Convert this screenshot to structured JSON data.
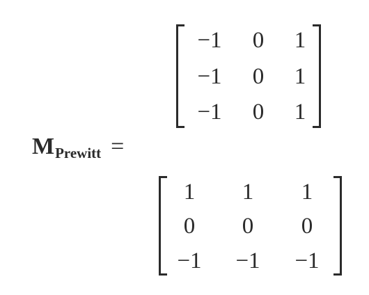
{
  "label": {
    "symbol": "M",
    "subscript": "Prewitt",
    "equals": "="
  },
  "matrix_a": {
    "rows": [
      [
        "−1",
        "0",
        "1"
      ],
      [
        "−1",
        "0",
        "1"
      ],
      [
        "−1",
        "0",
        "1"
      ]
    ]
  },
  "matrix_b": {
    "rows": [
      [
        "1",
        "1",
        "1"
      ],
      [
        "0",
        "0",
        "0"
      ],
      [
        "−1",
        "−1",
        "−1"
      ]
    ]
  }
}
